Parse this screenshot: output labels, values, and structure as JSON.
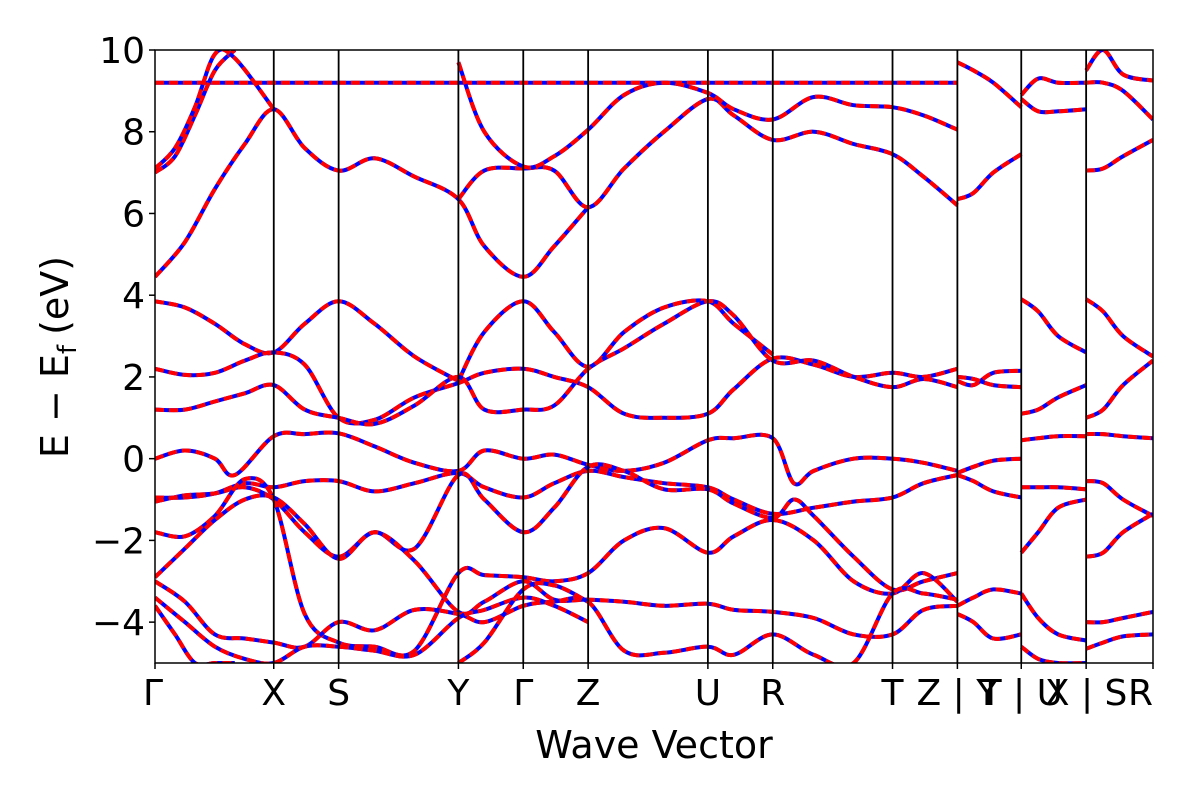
{
  "chart_data": {
    "type": "line",
    "title": "",
    "xlabel": "Wave Vector",
    "ylabel": "E − E",
    "ylabel_subscript": "f",
    "ylabel_unit": "(eV)",
    "ylim": [
      -5,
      10
    ],
    "yticks": [
      -4,
      -2,
      0,
      2,
      4,
      6,
      8,
      10
    ],
    "ytick_labels": [
      "−4",
      "−2",
      "0",
      "2",
      "4",
      "6",
      "8",
      "10"
    ],
    "xlim": [
      0,
      100
    ],
    "kpath_ticks": [
      {
        "x": 0,
        "label": "Γ"
      },
      {
        "x": 11.9,
        "label": "X"
      },
      {
        "x": 18.4,
        "label": "S"
      },
      {
        "x": 30.4,
        "label": "Y"
      },
      {
        "x": 36.9,
        "label": "Γ"
      },
      {
        "x": 43.4,
        "label": "Z"
      },
      {
        "x": 55.4,
        "label": "U"
      },
      {
        "x": 61.9,
        "label": "R"
      },
      {
        "x": 73.9,
        "label": "T"
      },
      {
        "x": 80.4,
        "label": "Z | Y"
      },
      {
        "x": 86.8,
        "label": "T | U"
      },
      {
        "x": 93.3,
        "label": "X | S"
      },
      {
        "x": 100,
        "label": "R"
      }
    ],
    "grid": false,
    "legend": "none",
    "colors": {
      "band_primary": "#ff0000",
      "band_secondary": "#0000ff",
      "kpath_line": "#000000"
    },
    "series": [
      {
        "x": [
          0,
          4,
          8,
          11.9,
          15,
          18.4,
          22,
          26,
          30.4,
          33,
          36.9,
          40,
          43.4,
          47,
          51,
          55.4,
          58,
          61.9,
          66,
          70,
          73.9,
          77,
          80.4
        ],
        "values": [
          9.2,
          9.2,
          9.2,
          9.2,
          9.2,
          9.2,
          9.2,
          9.2,
          9.2,
          9.2,
          9.2,
          9.2,
          9.2,
          9.2,
          9.2,
          9.2,
          9.2,
          9.2,
          9.2,
          9.2,
          9.2,
          9.2,
          9.2
        ]
      },
      {
        "x": [
          0,
          3,
          6,
          9,
          11.9,
          15,
          18.4,
          22,
          26,
          30.4,
          33,
          36.9,
          40,
          43.4
        ],
        "values": [
          4.45,
          5.3,
          6.6,
          7.7,
          8.55,
          7.6,
          7.05,
          7.35,
          6.9,
          6.35,
          5.2,
          4.45,
          5.2,
          6.15
        ]
      },
      {
        "x": [
          0,
          2,
          4,
          6,
          8
        ],
        "values": [
          7.0,
          7.4,
          8.4,
          9.5,
          10.0
        ]
      },
      {
        "x": [
          0,
          2,
          4,
          6,
          8,
          11.9
        ],
        "values": [
          7.1,
          7.6,
          8.6,
          9.9,
          9.8,
          8.55
        ]
      },
      {
        "x": [
          30.4,
          33,
          36.9,
          40,
          43.4,
          47,
          51,
          55.4,
          58,
          61.9,
          66,
          70,
          73.9,
          77,
          80.4
        ],
        "values": [
          6.35,
          7.05,
          7.1,
          7.05,
          6.15,
          7.1,
          8.0,
          8.8,
          8.4,
          7.8,
          8.0,
          7.7,
          7.45,
          6.9,
          6.2
        ]
      },
      {
        "x": [
          30.4,
          33,
          36.9,
          40,
          43.4,
          47,
          51,
          55.4,
          58,
          61.9,
          66,
          70,
          73.9,
          77,
          80.4
        ],
        "values": [
          9.7,
          8.0,
          7.15,
          7.4,
          8.05,
          8.9,
          9.2,
          8.95,
          8.55,
          8.3,
          8.85,
          8.65,
          8.6,
          8.4,
          8.05
        ]
      },
      {
        "x": [
          0,
          3,
          6,
          9,
          11.9,
          15,
          18.4,
          22,
          26,
          30.4
        ],
        "values": [
          3.85,
          3.7,
          3.3,
          2.8,
          2.6,
          3.3,
          3.85,
          3.3,
          2.5,
          1.9
        ]
      },
      {
        "x": [
          30.4,
          33,
          36.9,
          40,
          43.4,
          47,
          51,
          55.4,
          58,
          61.9
        ],
        "values": [
          1.9,
          3.1,
          3.85,
          3.1,
          2.25,
          3.1,
          3.7,
          3.85,
          3.3,
          2.55
        ]
      },
      {
        "x": [
          0,
          3,
          6,
          9,
          11.9,
          15,
          18.4,
          22,
          26,
          30.4,
          33,
          36.9,
          40,
          43.4,
          47,
          51,
          55.4,
          58,
          61.9,
          66,
          70,
          73.9,
          77,
          80.4
        ],
        "values": [
          2.2,
          2.05,
          2.1,
          2.4,
          2.6,
          2.3,
          1.0,
          0.95,
          1.5,
          1.85,
          2.1,
          2.2,
          2.0,
          1.75,
          1.1,
          1.0,
          1.1,
          1.7,
          2.45,
          2.3,
          2.0,
          2.1,
          2.0,
          2.2
        ]
      },
      {
        "x": [
          0,
          3,
          6,
          9,
          11.9,
          15,
          18.4,
          22,
          26,
          30.4,
          33,
          36.9,
          40,
          43.4,
          47,
          51,
          55.4,
          58,
          61.9,
          66,
          70,
          73.9,
          77,
          80.4
        ],
        "values": [
          1.2,
          1.2,
          1.4,
          1.6,
          1.8,
          1.2,
          1.0,
          0.85,
          1.3,
          2.0,
          1.2,
          1.2,
          1.3,
          2.2,
          2.7,
          3.3,
          3.85,
          3.5,
          2.4,
          2.4,
          2.0,
          1.75,
          1.95,
          1.75
        ]
      },
      {
        "x": [
          0,
          3,
          6,
          8,
          11.9,
          15,
          18.4,
          22,
          26,
          30.4,
          33,
          36.9,
          40,
          43.4,
          47,
          51,
          55.4,
          58,
          61.9,
          64,
          66,
          70,
          73.9,
          77,
          80.4
        ],
        "values": [
          0.0,
          0.2,
          0.0,
          -0.4,
          0.55,
          0.6,
          0.62,
          0.3,
          -0.1,
          -0.3,
          0.2,
          0.0,
          0.1,
          -0.15,
          -0.3,
          -0.1,
          0.45,
          0.5,
          0.5,
          -0.6,
          -0.3,
          0.0,
          0.0,
          -0.1,
          -0.3
        ]
      },
      {
        "x": [
          0,
          3,
          6,
          9,
          11.9,
          15,
          18.4,
          22,
          26,
          30.4,
          33,
          36.9,
          40,
          43.4,
          47,
          51,
          55.4,
          58,
          61.9,
          66,
          70,
          73.9,
          77,
          80.4
        ],
        "values": [
          -0.95,
          -0.95,
          -0.85,
          -0.6,
          -0.7,
          -0.55,
          -0.55,
          -0.8,
          -0.6,
          -0.35,
          -0.7,
          -0.95,
          -0.6,
          -0.3,
          -0.45,
          -0.6,
          -0.7,
          -1.0,
          -1.35,
          -1.2,
          -1.05,
          -0.95,
          -0.6,
          -0.4
        ]
      },
      {
        "x": [
          0,
          3,
          6,
          9,
          11.9,
          15,
          18.4,
          22,
          26,
          30.4,
          33,
          36.9,
          40,
          43.4,
          47,
          51,
          55.4,
          58,
          61.9,
          64,
          66,
          70,
          73.9,
          77,
          80.4
        ],
        "values": [
          -1.05,
          -0.9,
          -0.85,
          -0.7,
          -1.0,
          -1.8,
          -2.4,
          -1.8,
          -2.2,
          -0.4,
          -1.0,
          -1.8,
          -1.2,
          -0.2,
          -0.3,
          -0.75,
          -0.75,
          -1.1,
          -1.45,
          -1.0,
          -1.4,
          -2.4,
          -3.2,
          -3.0,
          -2.8
        ]
      },
      {
        "x": [
          0,
          3,
          6,
          9,
          11.9,
          15,
          18.4,
          22,
          26,
          30.4,
          33,
          36.9,
          40,
          43.4,
          47,
          51,
          55.4,
          58,
          61.9,
          66,
          70,
          73.9,
          77,
          80.4
        ],
        "values": [
          -1.8,
          -1.9,
          -1.4,
          -0.5,
          -1.0,
          -3.8,
          -4.5,
          -4.6,
          -4.7,
          -2.8,
          -2.85,
          -2.9,
          -3.0,
          -2.8,
          -2.0,
          -1.7,
          -2.3,
          -1.9,
          -1.5,
          -2.0,
          -3.0,
          -3.3,
          -2.8,
          -3.5
        ]
      },
      {
        "x": [
          0,
          3,
          6,
          9,
          11.9,
          15,
          18.4,
          22,
          26,
          30.4,
          33,
          36.9,
          40,
          43.4,
          47,
          51,
          55.4,
          58,
          61.9,
          66,
          70,
          73.9,
          77,
          80.4
        ],
        "values": [
          -2.9,
          -2.2,
          -1.5,
          -1.0,
          -0.95,
          -1.6,
          -2.45,
          -1.8,
          -2.5,
          -3.75,
          -3.5,
          -3.0,
          -3.45,
          -3.45,
          -3.5,
          -3.6,
          -3.55,
          -3.7,
          -3.75,
          -3.9,
          -4.3,
          -4.3,
          -3.7,
          -3.6
        ]
      },
      {
        "x": [
          0,
          3,
          6,
          9,
          11.9,
          15,
          18.4,
          22,
          26,
          30.4,
          33,
          36.9,
          40,
          43.4,
          47,
          51,
          55.4,
          58,
          61.9,
          66,
          70,
          73.9,
          77,
          80.4
        ],
        "values": [
          -3.0,
          -3.5,
          -4.3,
          -4.4,
          -4.5,
          -4.6,
          -4.0,
          -4.2,
          -3.7,
          -3.8,
          -4.0,
          -3.6,
          -3.5,
          -3.5,
          -4.7,
          -4.75,
          -4.6,
          -4.8,
          -4.3,
          -4.8,
          -5.0,
          -3.3,
          -3.3,
          -3.45
        ]
      },
      {
        "x": [
          0,
          3,
          6,
          9,
          11.9,
          15,
          18.4,
          22,
          26,
          30.4,
          33,
          36.9,
          40,
          43.4
        ],
        "values": [
          -3.4,
          -4.0,
          -4.6,
          -4.9,
          -5.0,
          -4.6,
          -4.6,
          -4.7,
          -4.8,
          -3.9,
          -3.7,
          -3.4,
          -3.6,
          -4.0
        ]
      },
      {
        "x": [
          0,
          2,
          4,
          6,
          8
        ],
        "values": [
          -3.6,
          -4.3,
          -5.0,
          -5.0,
          -5.0
        ]
      },
      {
        "x": [
          30.4,
          33,
          36.9,
          40,
          43.4
        ],
        "values": [
          -5.0,
          -4.5,
          -3.2,
          -3.1,
          -3.5
        ]
      },
      {
        "x": [
          80.4,
          82,
          84,
          86.8
        ],
        "values": [
          9.7,
          9.5,
          9.2,
          8.6
        ]
      },
      {
        "x": [
          80.4,
          82,
          84,
          86.8
        ],
        "values": [
          6.35,
          6.5,
          7.0,
          7.45
        ]
      },
      {
        "x": [
          80.4,
          82,
          84,
          86.8
        ],
        "values": [
          1.9,
          1.8,
          2.1,
          2.15
        ]
      },
      {
        "x": [
          80.4,
          82,
          84,
          86.8
        ],
        "values": [
          2.0,
          1.95,
          1.8,
          1.75
        ]
      },
      {
        "x": [
          80.4,
          82,
          84,
          86.8
        ],
        "values": [
          -0.35,
          -0.2,
          -0.05,
          0.0
        ]
      },
      {
        "x": [
          80.4,
          82,
          84,
          86.8
        ],
        "values": [
          -0.4,
          -0.55,
          -0.8,
          -0.95
        ]
      },
      {
        "x": [
          80.4,
          82,
          84,
          86.8
        ],
        "values": [
          -3.6,
          -3.4,
          -3.2,
          -3.3
        ]
      },
      {
        "x": [
          80.4,
          82,
          84,
          86.8
        ],
        "values": [
          -3.8,
          -4.0,
          -4.4,
          -4.3
        ]
      },
      {
        "x": [
          86.8,
          88.5,
          90.5,
          93.3
        ],
        "values": [
          8.9,
          9.3,
          9.2,
          9.2
        ]
      },
      {
        "x": [
          86.8,
          88.5,
          90.5,
          93.3
        ],
        "values": [
          8.8,
          8.5,
          8.5,
          8.55
        ]
      },
      {
        "x": [
          86.8,
          88.5,
          90.5,
          93.3
        ],
        "values": [
          3.9,
          3.6,
          3.0,
          2.6
        ]
      },
      {
        "x": [
          86.8,
          88.5,
          90.5,
          93.3
        ],
        "values": [
          1.1,
          1.2,
          1.5,
          1.8
        ]
      },
      {
        "x": [
          86.8,
          88.5,
          90.5,
          93.3
        ],
        "values": [
          0.45,
          0.5,
          0.55,
          0.55
        ]
      },
      {
        "x": [
          86.8,
          88.5,
          90.5,
          93.3
        ],
        "values": [
          -0.7,
          -0.7,
          -0.7,
          -0.75
        ]
      },
      {
        "x": [
          86.8,
          88.5,
          90.5,
          93.3
        ],
        "values": [
          -2.3,
          -1.8,
          -1.2,
          -1.0
        ]
      },
      {
        "x": [
          86.8,
          88.5,
          90.5,
          93.3
        ],
        "values": [
          -3.3,
          -3.9,
          -4.3,
          -4.45
        ]
      },
      {
        "x": [
          86.8,
          88.5,
          90.5,
          93.3
        ],
        "values": [
          -4.6,
          -4.9,
          -5.0,
          -5.0
        ]
      },
      {
        "x": [
          93.3,
          95,
          97,
          100
        ],
        "values": [
          9.5,
          10.0,
          9.4,
          9.25
        ]
      },
      {
        "x": [
          93.3,
          95,
          97,
          100
        ],
        "values": [
          9.2,
          9.2,
          9.0,
          8.3
        ]
      },
      {
        "x": [
          93.3,
          95,
          97,
          100
        ],
        "values": [
          7.05,
          7.1,
          7.4,
          7.8
        ]
      },
      {
        "x": [
          93.3,
          95,
          97,
          100
        ],
        "values": [
          3.9,
          3.6,
          3.0,
          2.5
        ]
      },
      {
        "x": [
          93.3,
          95,
          97,
          100
        ],
        "values": [
          1.0,
          1.2,
          1.8,
          2.4
        ]
      },
      {
        "x": [
          93.3,
          95,
          97,
          100
        ],
        "values": [
          0.6,
          0.6,
          0.55,
          0.5
        ]
      },
      {
        "x": [
          93.3,
          95,
          97,
          100
        ],
        "values": [
          -0.55,
          -0.6,
          -1.0,
          -1.4
        ]
      },
      {
        "x": [
          93.3,
          95,
          97,
          100
        ],
        "values": [
          -2.4,
          -2.3,
          -1.8,
          -1.35
        ]
      },
      {
        "x": [
          93.3,
          95,
          97,
          100
        ],
        "values": [
          -4.0,
          -4.0,
          -3.9,
          -3.75
        ]
      },
      {
        "x": [
          93.3,
          95,
          97,
          100
        ],
        "values": [
          -4.65,
          -4.5,
          -4.35,
          -4.3
        ]
      }
    ]
  }
}
